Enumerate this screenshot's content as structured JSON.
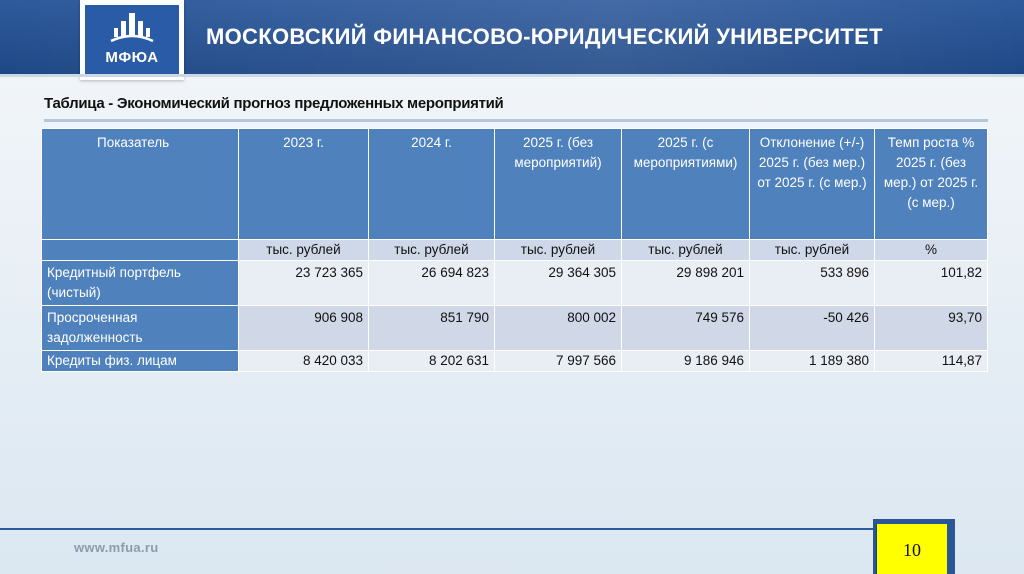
{
  "header": {
    "logo_text": "МФЮА",
    "university_title": "МОСКОВСКИЙ ФИНАНСОВО-ЮРИДИЧЕСКИЙ УНИВЕРСИТЕТ"
  },
  "slide": {
    "caption": "Таблица - Экономический прогноз предложенных мероприятий"
  },
  "table": {
    "headers": [
      "Показатель",
      "2023 г.",
      "2024 г.",
      "2025 г. (без мероприятий)",
      "2025 г. (с мероприятиями)",
      "Отклонение (+/-) 2025 г. (без мер.) от 2025 г. (с мер.)",
      "Темп роста % 2025 г. (без мер.) от 2025 г. (с мер.)"
    ],
    "units": [
      "",
      "тыс. рублей",
      "тыс. рублей",
      "тыс. рублей",
      "тыс. рублей",
      "тыс. рублей",
      "%"
    ],
    "rows": [
      {
        "label": "Кредитный портфель (чистый)",
        "values": [
          "23 723 365",
          "26 694 823",
          "29 364 305",
          "29 898 201",
          "533 896",
          "101,82"
        ]
      },
      {
        "label": "Просроченная задолженность",
        "values": [
          "906 908",
          "851 790",
          "800 002",
          "749 576",
          "-50 426",
          "93,70"
        ]
      },
      {
        "label": "Кредиты физ. лицам",
        "values": [
          "8 420 033",
          "8 202 631",
          "7 997 566",
          "9 186 946",
          "1 189 380",
          "114,87"
        ]
      }
    ]
  },
  "footer": {
    "url": "www.mfua.ru",
    "page_number": "10"
  },
  "colors": {
    "header_blue": "#1f4886",
    "table_header": "#4f81bd",
    "row_light": "#e9edf4",
    "row_dark": "#d0d8e8",
    "page_box": "#ffff00"
  }
}
